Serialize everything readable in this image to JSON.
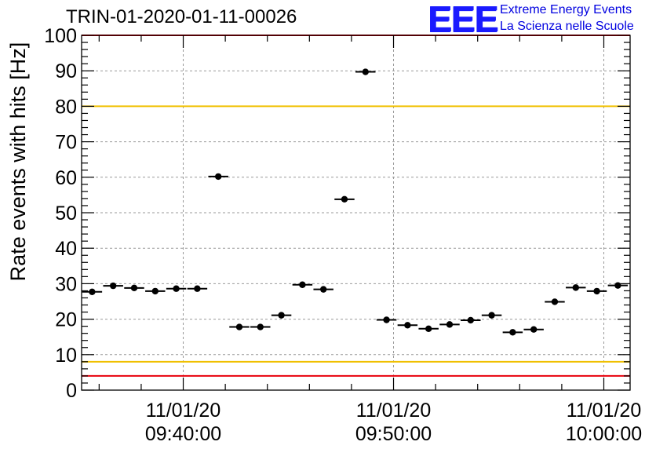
{
  "page": {
    "title": "TRIN-01-2020-01-11-00026",
    "logo": {
      "mark": "EEE",
      "line1": "Extreme Energy Events",
      "line2": "La Scienza nelle Scuole"
    }
  },
  "colors": {
    "limit_red": "#e8000b",
    "limit_yellow": "#f0c000",
    "points": "#000000",
    "grid": "#999999"
  },
  "chart_data": {
    "type": "scatter",
    "ylabel": "Rate events with hits [Hz]",
    "xlabel": "",
    "ylim": [
      0,
      100
    ],
    "yticks": [
      0,
      10,
      20,
      30,
      40,
      50,
      60,
      70,
      80,
      90,
      100
    ],
    "xlim": [
      "09:35:10",
      "10:01:15"
    ],
    "xticks": [
      {
        "time": "09:40:00",
        "date": "11/01/20"
      },
      {
        "time": "09:50:00",
        "date": "11/01/20"
      },
      {
        "time": "10:00:00",
        "date": "11/01/20"
      }
    ],
    "grid": true,
    "bin_width_min": 0.95,
    "limit_lines": [
      {
        "value": 100,
        "color": "red"
      },
      {
        "value": 80,
        "color": "yellow"
      },
      {
        "value": 8,
        "color": "yellow"
      },
      {
        "value": 4,
        "color": "red"
      }
    ],
    "points": [
      {
        "t": "09:35:40",
        "y": 27.7
      },
      {
        "t": "09:36:40",
        "y": 29.4
      },
      {
        "t": "09:37:40",
        "y": 28.8
      },
      {
        "t": "09:38:40",
        "y": 27.9
      },
      {
        "t": "09:39:40",
        "y": 28.6
      },
      {
        "t": "09:40:40",
        "y": 28.6
      },
      {
        "t": "09:41:40",
        "y": 60.2
      },
      {
        "t": "09:42:40",
        "y": 17.8
      },
      {
        "t": "09:43:40",
        "y": 17.8
      },
      {
        "t": "09:44:40",
        "y": 21.1
      },
      {
        "t": "09:45:40",
        "y": 29.7
      },
      {
        "t": "09:46:40",
        "y": 28.4
      },
      {
        "t": "09:47:40",
        "y": 53.8
      },
      {
        "t": "09:48:40",
        "y": 89.7
      },
      {
        "t": "09:49:40",
        "y": 19.8
      },
      {
        "t": "09:50:40",
        "y": 18.3
      },
      {
        "t": "09:51:40",
        "y": 17.3
      },
      {
        "t": "09:52:40",
        "y": 18.5
      },
      {
        "t": "09:53:40",
        "y": 19.7
      },
      {
        "t": "09:54:40",
        "y": 21.1
      },
      {
        "t": "09:55:40",
        "y": 16.3
      },
      {
        "t": "09:56:40",
        "y": 17.1
      },
      {
        "t": "09:57:40",
        "y": 24.9
      },
      {
        "t": "09:58:40",
        "y": 28.9
      },
      {
        "t": "09:59:40",
        "y": 27.9
      },
      {
        "t": "10:00:40",
        "y": 29.5
      }
    ]
  }
}
